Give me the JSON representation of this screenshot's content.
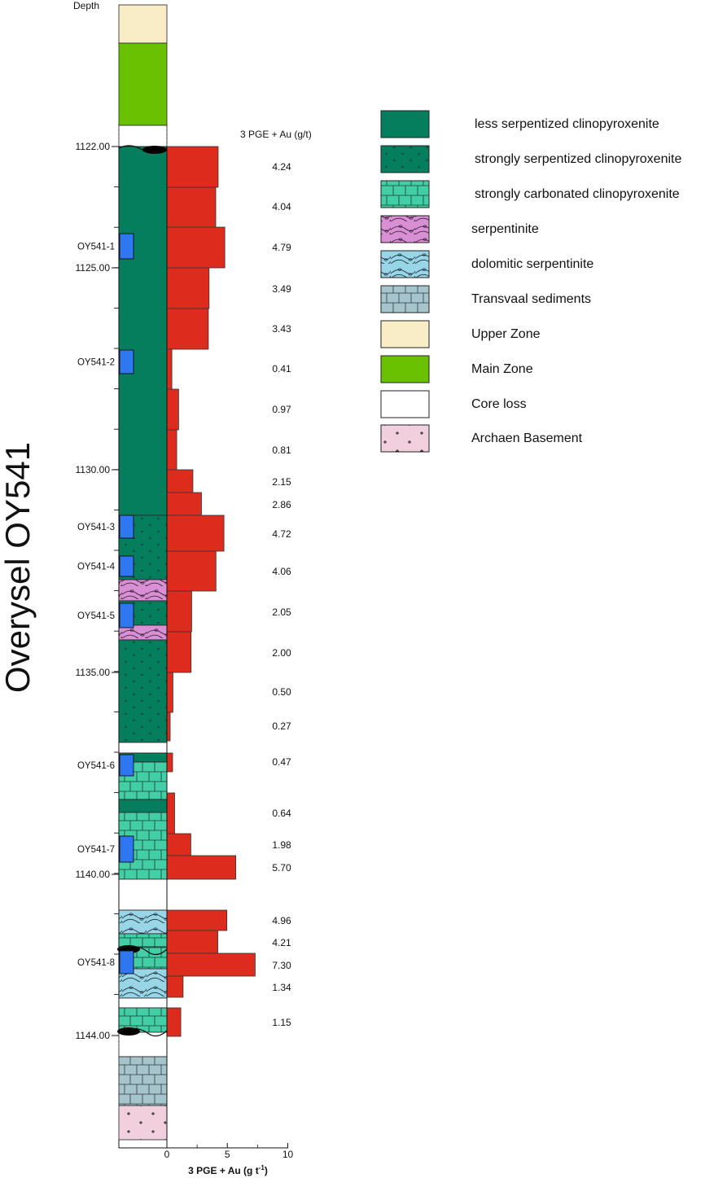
{
  "title": "Overysel OY541",
  "depth_header": "Depth",
  "values_header": "3 PGE + Au (g/t)",
  "x_axis": {
    "label_main": "3 PGE + Au (g t",
    "label_sup": "-1",
    "label_close": ")",
    "ticks": [
      "0",
      "5",
      "10"
    ],
    "range": [
      0,
      10
    ]
  },
  "depth_labels": [
    "1122.00",
    "1125.00",
    "1130.00",
    "1135.00",
    "1140.00",
    "1144.00"
  ],
  "samples": [
    "OY541-1",
    "OY541-2",
    "OY541-3",
    "OY541-4",
    "OY541-5",
    "OY541-6",
    "OY541-7",
    "OY541-8"
  ],
  "chart_data": {
    "type": "bar",
    "orientation": "horizontal",
    "values": [
      4.24,
      4.04,
      4.79,
      3.49,
      3.43,
      0.41,
      0.97,
      0.81,
      2.15,
      2.86,
      4.72,
      4.06,
      2.05,
      2.0,
      0.5,
      0.27,
      0.47,
      0.64,
      1.98,
      5.7,
      4.96,
      4.21,
      7.3,
      1.34,
      1.15
    ],
    "value_labels": [
      "4.24",
      "4.04",
      "4.79",
      "3.49",
      "3.43",
      "0.41",
      "0.97",
      "0.81",
      "2.15",
      "2.86",
      "4.72",
      "4.06",
      "2.05",
      "2.00",
      "0.50",
      "0.27",
      "0.47",
      "0.64",
      "1.98",
      "5.70",
      "4.96",
      "4.21",
      "7.30",
      "1.34",
      "1.15"
    ],
    "xlabel": "3 PGE + Au (g t-1)",
    "xlim": [
      0,
      10
    ],
    "ylabel": "Depth",
    "bar_color": "#dd2c1e"
  },
  "legend": [
    {
      "label": "less serpentized clinopyroxenite",
      "pattern": "less-serp"
    },
    {
      "label": "strongly serpentized clinopyroxenite",
      "pattern": "strong-serp"
    },
    {
      "label": "strongly carbonated clinopyroxenite",
      "pattern": "carbonated"
    },
    {
      "label": "serpentinite",
      "pattern": "serpentinite"
    },
    {
      "label": "dolomitic serpentinite",
      "pattern": "dolomitic"
    },
    {
      "label": "Transvaal sediments",
      "pattern": "transvaal"
    },
    {
      "label": "Upper Zone",
      "pattern": "upper"
    },
    {
      "label": "Main Zone",
      "pattern": "main"
    },
    {
      "label": "Core loss",
      "pattern": "coreloss"
    },
    {
      "label": "Archaen Basement",
      "pattern": "archaen"
    }
  ],
  "colors": {
    "less_serpentized": "#047e5d",
    "carbonated": "#42cfa5",
    "serpentinite": "#d98fd4",
    "dolomitic": "#98d5e6",
    "transvaal": "#a6c4cc",
    "upper_zone": "#f8edc7",
    "main_zone": "#69c102",
    "archaen": "#f2cfdc",
    "sample_marker": "#2f76f2",
    "bar": "#dd2c1e"
  }
}
